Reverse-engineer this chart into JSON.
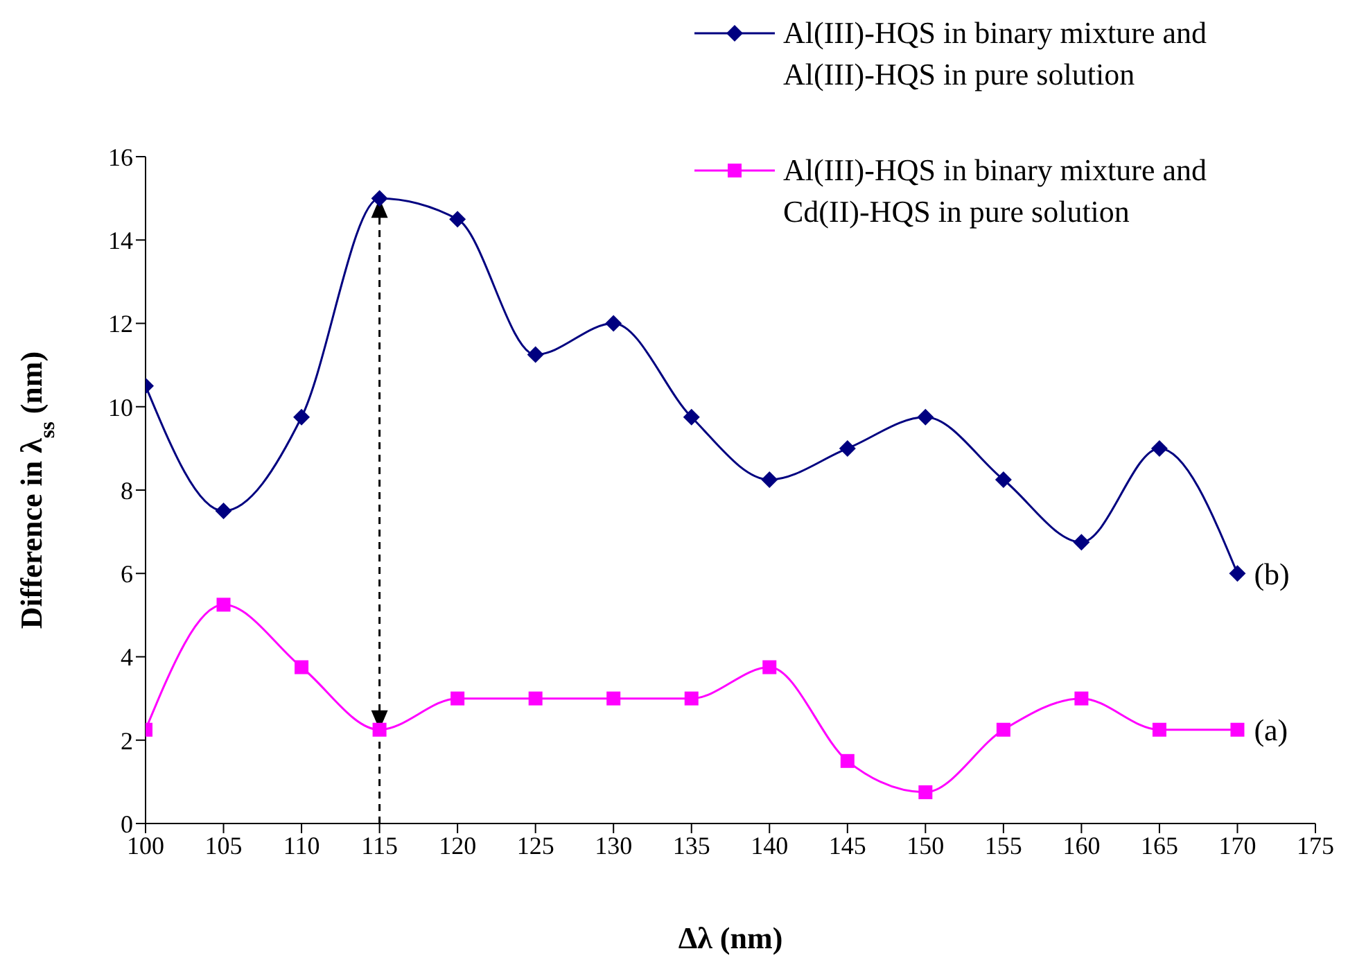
{
  "chart_data": {
    "type": "line",
    "xlabel": "Δλ (nm)",
    "ylabel": "Difference in λ$_{ss}$ (nm)",
    "x": [
      100,
      105,
      110,
      115,
      120,
      125,
      130,
      135,
      140,
      145,
      150,
      155,
      160,
      165,
      170
    ],
    "series": [
      {
        "name": "Al(III)-HQS in binary mixture and Al(III)-HQS in pure solution",
        "color": "#000080",
        "marker": "diamond",
        "values": [
          10.5,
          7.5,
          9.75,
          15,
          14.5,
          11.25,
          12,
          9.75,
          8.25,
          9,
          9.75,
          8.25,
          6.75,
          9,
          6
        ]
      },
      {
        "name": "Al(III)-HQS in binary mixture and Cd(II)-HQS in pure solution",
        "color": "#ff00ff",
        "marker": "square",
        "values": [
          2.25,
          5.25,
          3.75,
          2.25,
          3,
          3,
          3,
          3,
          3.75,
          1.5,
          0.75,
          2.25,
          3,
          2.25,
          2.25
        ]
      }
    ],
    "annotations": [
      {
        "text": "(b)",
        "x": 170,
        "y": 6
      },
      {
        "text": "(a)",
        "x": 170,
        "y": 2.25
      }
    ],
    "ref_lines": [
      {
        "axis": "x",
        "value": 115,
        "line_style": "dashed"
      }
    ],
    "xlim": [
      100,
      175
    ],
    "xticks": [
      100,
      105,
      110,
      115,
      120,
      125,
      130,
      135,
      140,
      145,
      150,
      155,
      160,
      165,
      170,
      175
    ],
    "ylim": [
      0,
      16
    ],
    "yticks": [
      0,
      2,
      4,
      6,
      8,
      10,
      12,
      14,
      16
    ],
    "grid": false,
    "legend": "top right"
  }
}
